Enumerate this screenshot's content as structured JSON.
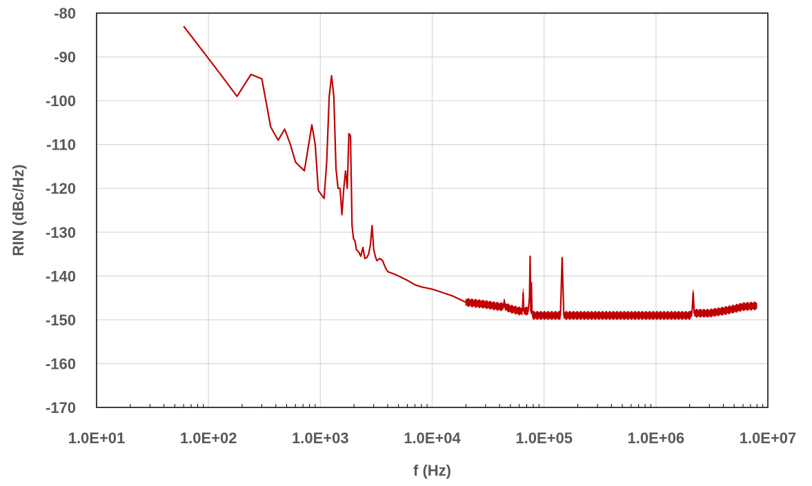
{
  "chart_data": {
    "type": "line",
    "xlabel": "f (Hz)",
    "ylabel": "RIN (dBc/Hz)",
    "xscale": "log",
    "xlim": [
      10,
      10000000
    ],
    "ylim": [
      -170,
      -80
    ],
    "x_tick_labels": [
      "1.0E+01",
      "1.0E+02",
      "1.0E+03",
      "1.0E+04",
      "1.0E+05",
      "1.0E+06",
      "1.0E+07"
    ],
    "y_tick_labels": [
      "-80",
      "-90",
      "-100",
      "-110",
      "-120",
      "-130",
      "-140",
      "-150",
      "-160",
      "-170"
    ],
    "grid": true,
    "legend": "none",
    "line_color": "#c00000",
    "series": [
      {
        "x": [
          60,
          120,
          180,
          240,
          300,
          360,
          420,
          480,
          540,
          600,
          720,
          840,
          900,
          960,
          1080,
          1140,
          1200,
          1260,
          1320,
          1380,
          1440,
          1500,
          1560,
          1620,
          1680,
          1740,
          1800,
          1860,
          1920,
          1980,
          2040,
          2100,
          2200,
          2300,
          2400,
          2500,
          2600,
          2700,
          2800,
          2900,
          3000,
          3100,
          3200,
          3400,
          3600,
          3800,
          4000,
          4500,
          5000,
          6000,
          7000,
          8000,
          10000,
          15000,
          20000,
          30000,
          40000,
          43000,
          44000,
          45000,
          50000,
          60000,
          64000,
          65000,
          66000,
          72000,
          74000,
          75000,
          76000,
          77000,
          78000,
          80000,
          90000,
          100000,
          140000,
          145000,
          150000,
          200000,
          300000,
          500000,
          700000,
          1000000,
          1500000,
          2000000,
          2100000,
          2150000,
          2200000,
          3000000,
          4000000,
          5000000,
          6000000,
          8000000
        ],
        "y": [
          -83,
          -93,
          -99,
          -94,
          -95,
          -106,
          -109,
          -106.5,
          -110,
          -114,
          -116,
          -105.5,
          -110,
          -120.5,
          -122.3,
          -114,
          -99,
          -94.3,
          -99,
          -115.5,
          -120,
          -120,
          -126,
          -120,
          -116,
          -120,
          -107.5,
          -108,
          -128.5,
          -131.5,
          -132,
          -134,
          -134.5,
          -135.5,
          -133.5,
          -136,
          -135.8,
          -135,
          -133,
          -128.5,
          -134,
          -135.5,
          -136.5,
          -136,
          -136.5,
          -138,
          -139,
          -139.5,
          -140,
          -141,
          -142,
          -142.5,
          -143,
          -144.5,
          -146,
          -146.5,
          -147,
          -147,
          -146,
          -147,
          -147.5,
          -148,
          -148,
          -143.8,
          -148,
          -148,
          -145,
          -135.5,
          -148,
          -141.5,
          -148.5,
          -149,
          -149,
          -149,
          -149,
          -135.8,
          -149,
          -149,
          -149,
          -149,
          -149,
          -149,
          -149,
          -149,
          -148.5,
          -143.8,
          -148.5,
          -148.5,
          -148,
          -147.5,
          -147,
          -146.8
        ]
      }
    ]
  }
}
